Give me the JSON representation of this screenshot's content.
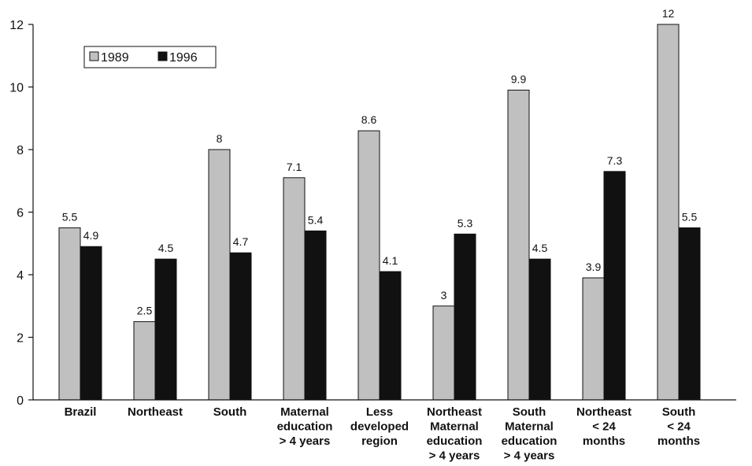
{
  "chart_data": {
    "type": "bar",
    "title": "",
    "xlabel": "",
    "ylabel": "",
    "ylim": [
      0,
      12
    ],
    "yticks": [
      0,
      2,
      4,
      6,
      8,
      10,
      12
    ],
    "grid": false,
    "legend_position": "top-left",
    "categories": [
      [
        "Brazil"
      ],
      [
        "Northeast"
      ],
      [
        "South"
      ],
      [
        "Maternal",
        "education",
        "> 4 years"
      ],
      [
        "Less",
        "developed",
        "region"
      ],
      [
        "Northeast",
        "Maternal",
        "education",
        "> 4 years"
      ],
      [
        "South",
        "Maternal",
        "education",
        "> 4 years"
      ],
      [
        "Northeast",
        "< 24",
        "months"
      ],
      [
        "South",
        "< 24",
        "months"
      ]
    ],
    "series": [
      {
        "name": "1989",
        "color": "#c0c0c0",
        "values": [
          5.5,
          2.5,
          8,
          7.1,
          8.6,
          3,
          9.9,
          3.9,
          12
        ]
      },
      {
        "name": "1996",
        "color": "#111111",
        "values": [
          4.9,
          4.5,
          4.7,
          5.4,
          4.1,
          5.3,
          4.5,
          7.3,
          5.5
        ]
      }
    ]
  }
}
